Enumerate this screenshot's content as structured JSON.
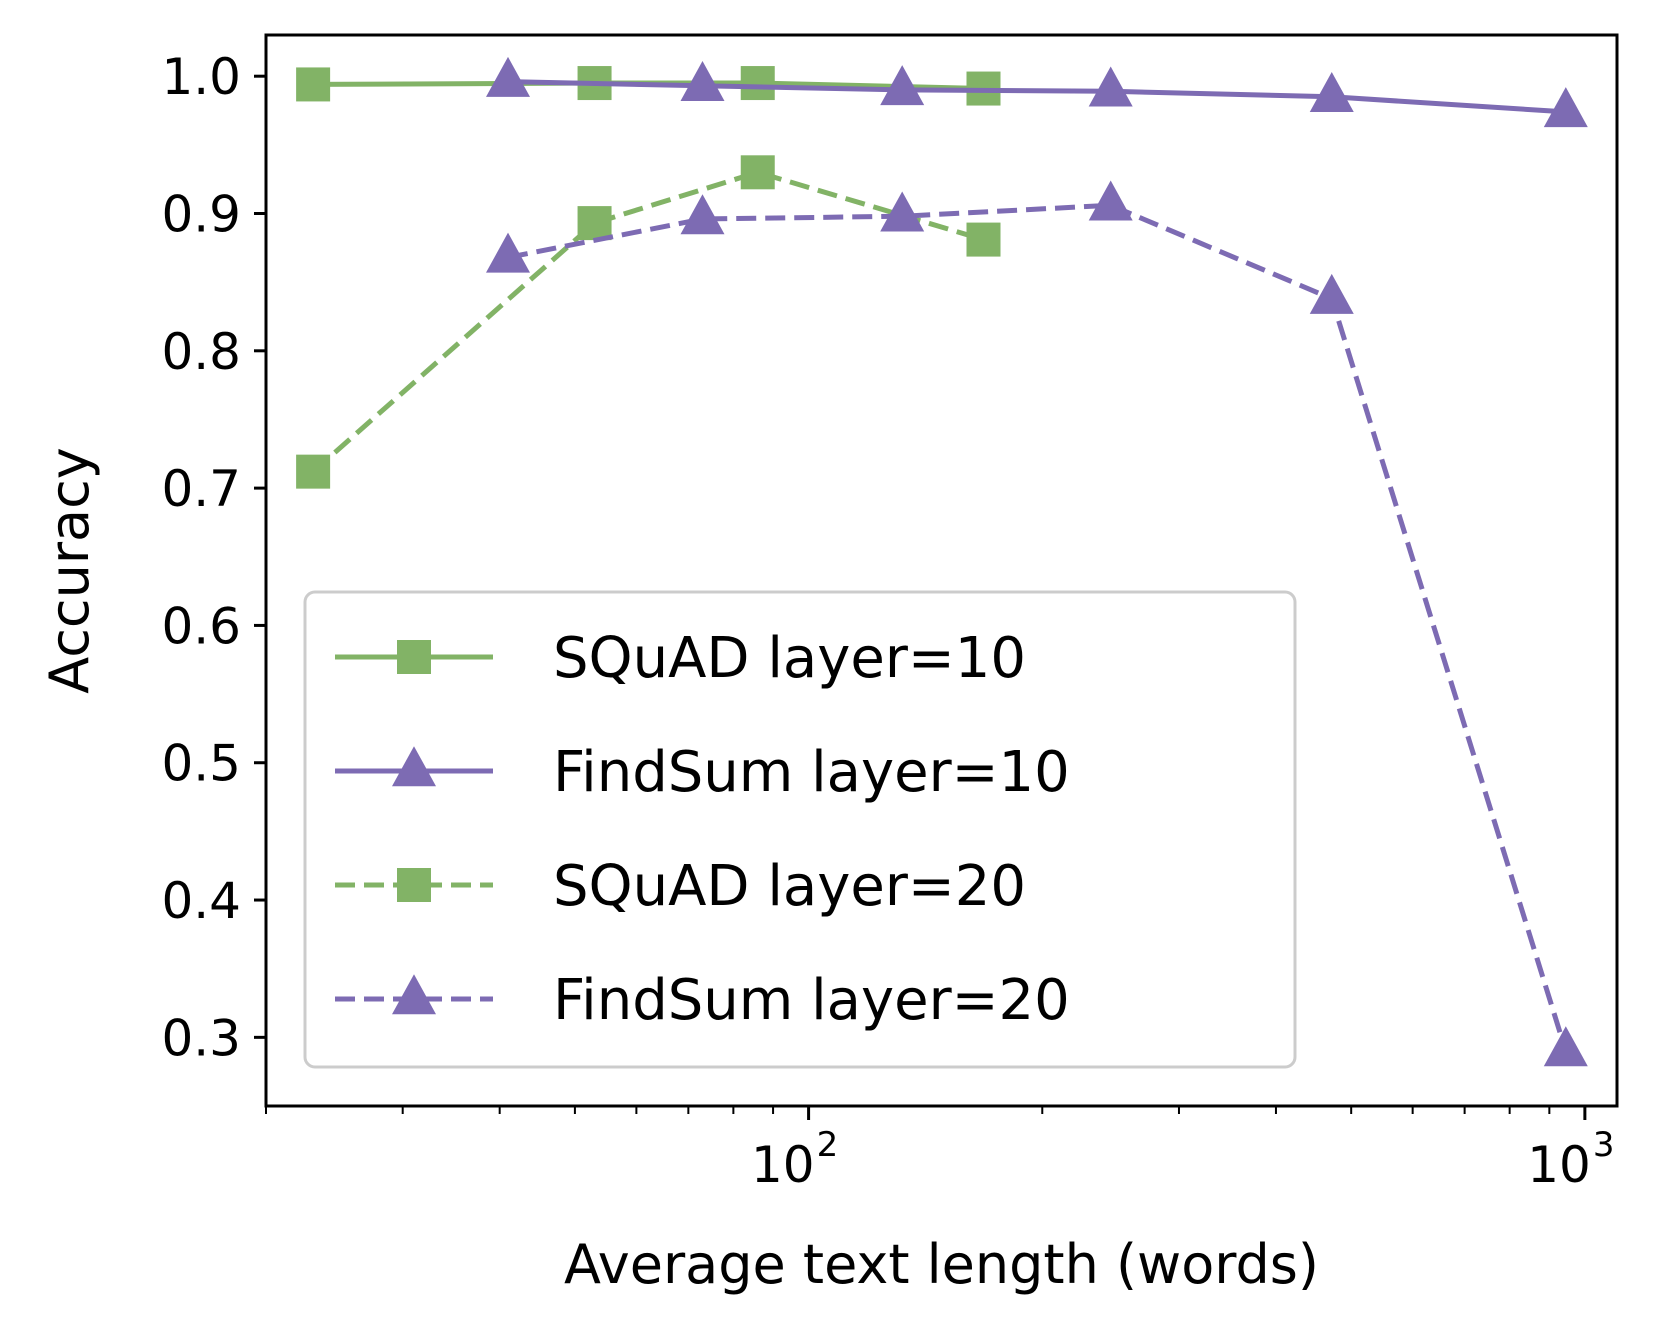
{
  "chart_data": {
    "type": "line",
    "xscale": "log",
    "xlim": [
      20,
      1100
    ],
    "ylim": [
      0.25,
      1.03
    ],
    "xlabel": "Average text length (words)",
    "ylabel": "Accuracy",
    "grid": false,
    "legend_position": "lower-left",
    "xticks": [
      {
        "value": 100,
        "base": "10",
        "exp": "2"
      },
      {
        "value": 1000,
        "base": "10",
        "exp": "3"
      }
    ],
    "yticks": [
      {
        "value": 0.3,
        "label": "0.3"
      },
      {
        "value": 0.4,
        "label": "0.4"
      },
      {
        "value": 0.5,
        "label": "0.5"
      },
      {
        "value": 0.6,
        "label": "0.6"
      },
      {
        "value": 0.7,
        "label": "0.7"
      },
      {
        "value": 0.8,
        "label": "0.8"
      },
      {
        "value": 0.9,
        "label": "0.9"
      },
      {
        "value": 1.0,
        "label": "1.0"
      }
    ],
    "series": [
      {
        "name": "SQuAD layer=10",
        "color": "#82b366",
        "marker": "square",
        "linestyle": "solid",
        "x": [
          23,
          53,
          86,
          168
        ],
        "y": [
          0.994,
          0.995,
          0.995,
          0.991
        ]
      },
      {
        "name": "FindSum layer=10",
        "color": "#7d6bb3",
        "marker": "triangle",
        "linestyle": "solid",
        "x": [
          41,
          73,
          132,
          245,
          472,
          945
        ],
        "y": [
          0.996,
          0.993,
          0.99,
          0.989,
          0.985,
          0.974
        ]
      },
      {
        "name": "SQuAD layer=20",
        "color": "#82b366",
        "marker": "square",
        "linestyle": "dashed",
        "x": [
          23,
          53,
          86,
          168
        ],
        "y": [
          0.712,
          0.893,
          0.93,
          0.881
        ]
      },
      {
        "name": "FindSum layer=20",
        "color": "#7d6bb3",
        "marker": "triangle",
        "linestyle": "dashed",
        "x": [
          41,
          73,
          132,
          245,
          472,
          945
        ],
        "y": [
          0.868,
          0.896,
          0.898,
          0.906,
          0.838,
          0.29
        ]
      }
    ]
  }
}
